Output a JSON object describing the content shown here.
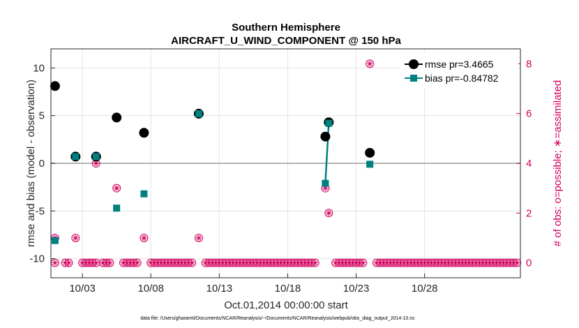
{
  "chart_data": {
    "type": "scatter",
    "title": [
      "Southern Hemisphere",
      "AIRCRAFT_U_WIND_COMPONENT @ 150 hPa"
    ],
    "xlabel": "Oct.01,2014 00:00:00 start",
    "ylabel": "rmse and bias (model - observation)",
    "y2label": "# of obs: o=possible; ∗=assimilated",
    "xlim": [
      0.7,
      35.0
    ],
    "ylim": [
      -12,
      12
    ],
    "y2lim": [
      -0.6,
      8.6
    ],
    "x_ticks": [
      3,
      8,
      13,
      18,
      23,
      28
    ],
    "x_tick_labels": [
      "10/03",
      "10/08",
      "10/13",
      "10/18",
      "10/23",
      "10/28"
    ],
    "y_ticks": [
      -10,
      -5,
      0,
      5,
      10
    ],
    "y_tick_labels": [
      "-10",
      "-5",
      "0",
      "5",
      "10"
    ],
    "y2_ticks": [
      0,
      2,
      4,
      6,
      8
    ],
    "y2_tick_labels": [
      "0",
      "2",
      "4",
      "6",
      "8"
    ],
    "series": [
      {
        "name": "rmse pr=3.4665",
        "color": "#000000",
        "marker": "circle",
        "points": [
          [
            1.0,
            8.1
          ],
          [
            2.5,
            0.7
          ],
          [
            4.0,
            0.7
          ],
          [
            5.5,
            4.8
          ],
          [
            7.5,
            3.2
          ],
          [
            11.5,
            5.2
          ],
          [
            20.75,
            2.8
          ],
          [
            21.0,
            4.3
          ],
          [
            24.0,
            1.1
          ]
        ]
      },
      {
        "name": "bias pr=-0.84782",
        "color": "#008080",
        "marker": "square",
        "points": [
          [
            1.0,
            -8.1
          ],
          [
            2.5,
            0.7
          ],
          [
            4.0,
            0.7
          ],
          [
            5.5,
            -4.7
          ],
          [
            7.5,
            -3.2
          ],
          [
            11.5,
            5.2
          ],
          [
            20.75,
            -2.1
          ],
          [
            21.0,
            4.2
          ],
          [
            24.0,
            -0.1
          ]
        ],
        "connected_segments": [
          [
            6,
            7
          ]
        ]
      }
    ],
    "obs_count": {
      "color": "#d1005e",
      "x_start": 1.0,
      "x_end": 34.75,
      "x_step": 0.25,
      "possible_nonzero": [
        [
          1.0,
          1
        ],
        [
          2.5,
          1
        ],
        [
          4.0,
          4
        ],
        [
          5.5,
          3
        ],
        [
          7.5,
          1
        ],
        [
          11.5,
          1
        ],
        [
          20.75,
          3
        ],
        [
          21.0,
          2
        ],
        [
          24.0,
          8
        ]
      ],
      "assimilated_nonzero": [
        [
          1.0,
          1
        ],
        [
          2.5,
          1
        ],
        [
          4.0,
          4
        ],
        [
          5.5,
          3
        ],
        [
          7.5,
          1
        ],
        [
          11.5,
          1
        ],
        [
          20.75,
          3
        ],
        [
          21.0,
          2
        ],
        [
          24.0,
          8
        ]
      ],
      "gaps": [
        [
          1.25,
          1.5
        ],
        [
          2.25,
          2.75
        ],
        [
          4.25,
          4.25
        ],
        [
          5.25,
          5.75
        ],
        [
          7.25,
          7.75
        ],
        [
          11.25,
          11.75
        ],
        [
          20.25,
          21.25
        ],
        [
          23.75,
          24.25
        ]
      ]
    },
    "footer": "data file: /Users/gharamti/Documents/NCAR/Reanalysis/~/Documents/NCAR/Reanalysis/webpub/obs_diag_output_2014-10.nc",
    "grid": true,
    "legend_position": "top-right"
  }
}
